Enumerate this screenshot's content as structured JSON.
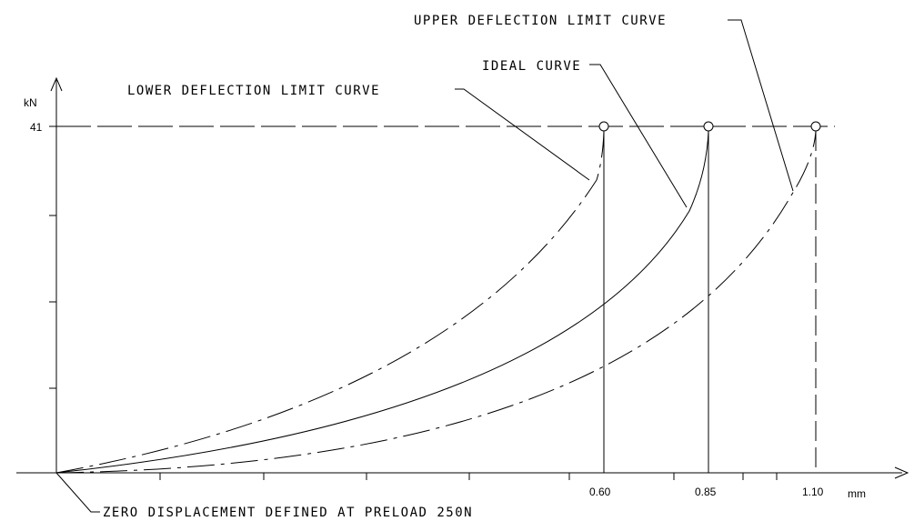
{
  "chart_data": {
    "type": "line",
    "x_unit": "mm",
    "y_unit": "kN",
    "x_ticks": [
      "0.60",
      "0.85",
      "1.10"
    ],
    "y_ticks": [
      "41"
    ],
    "max_load_kN": 41,
    "series": [
      {
        "name": "LOWER DEFLECTION LIMIT CURVE",
        "style": "dash-dot",
        "end_x_mm": 0.6
      },
      {
        "name": "IDEAL CURVE",
        "style": "solid",
        "end_x_mm": 0.85
      },
      {
        "name": "UPPER DEFLECTION LIMIT CURVE",
        "style": "dash-dot",
        "end_x_mm": 1.1
      }
    ],
    "annotations": {
      "origin_note": "ZERO DISPLACEMENT DEFINED AT PRELOAD 250N"
    },
    "grid": false,
    "legend": "callout leader lines"
  },
  "labels": {
    "upper": "UPPER DEFLECTION LIMIT CURVE",
    "ideal": "IDEAL CURVE",
    "lower": "LOWER DEFLECTION LIMIT CURVE",
    "origin_note": "ZERO DISPLACEMENT DEFINED AT PRELOAD 250N",
    "y_unit": "kN",
    "x_unit": "mm",
    "y_tick": "41",
    "x_tick_1": "0.60",
    "x_tick_2": "0.85",
    "x_tick_3": "1.10"
  }
}
